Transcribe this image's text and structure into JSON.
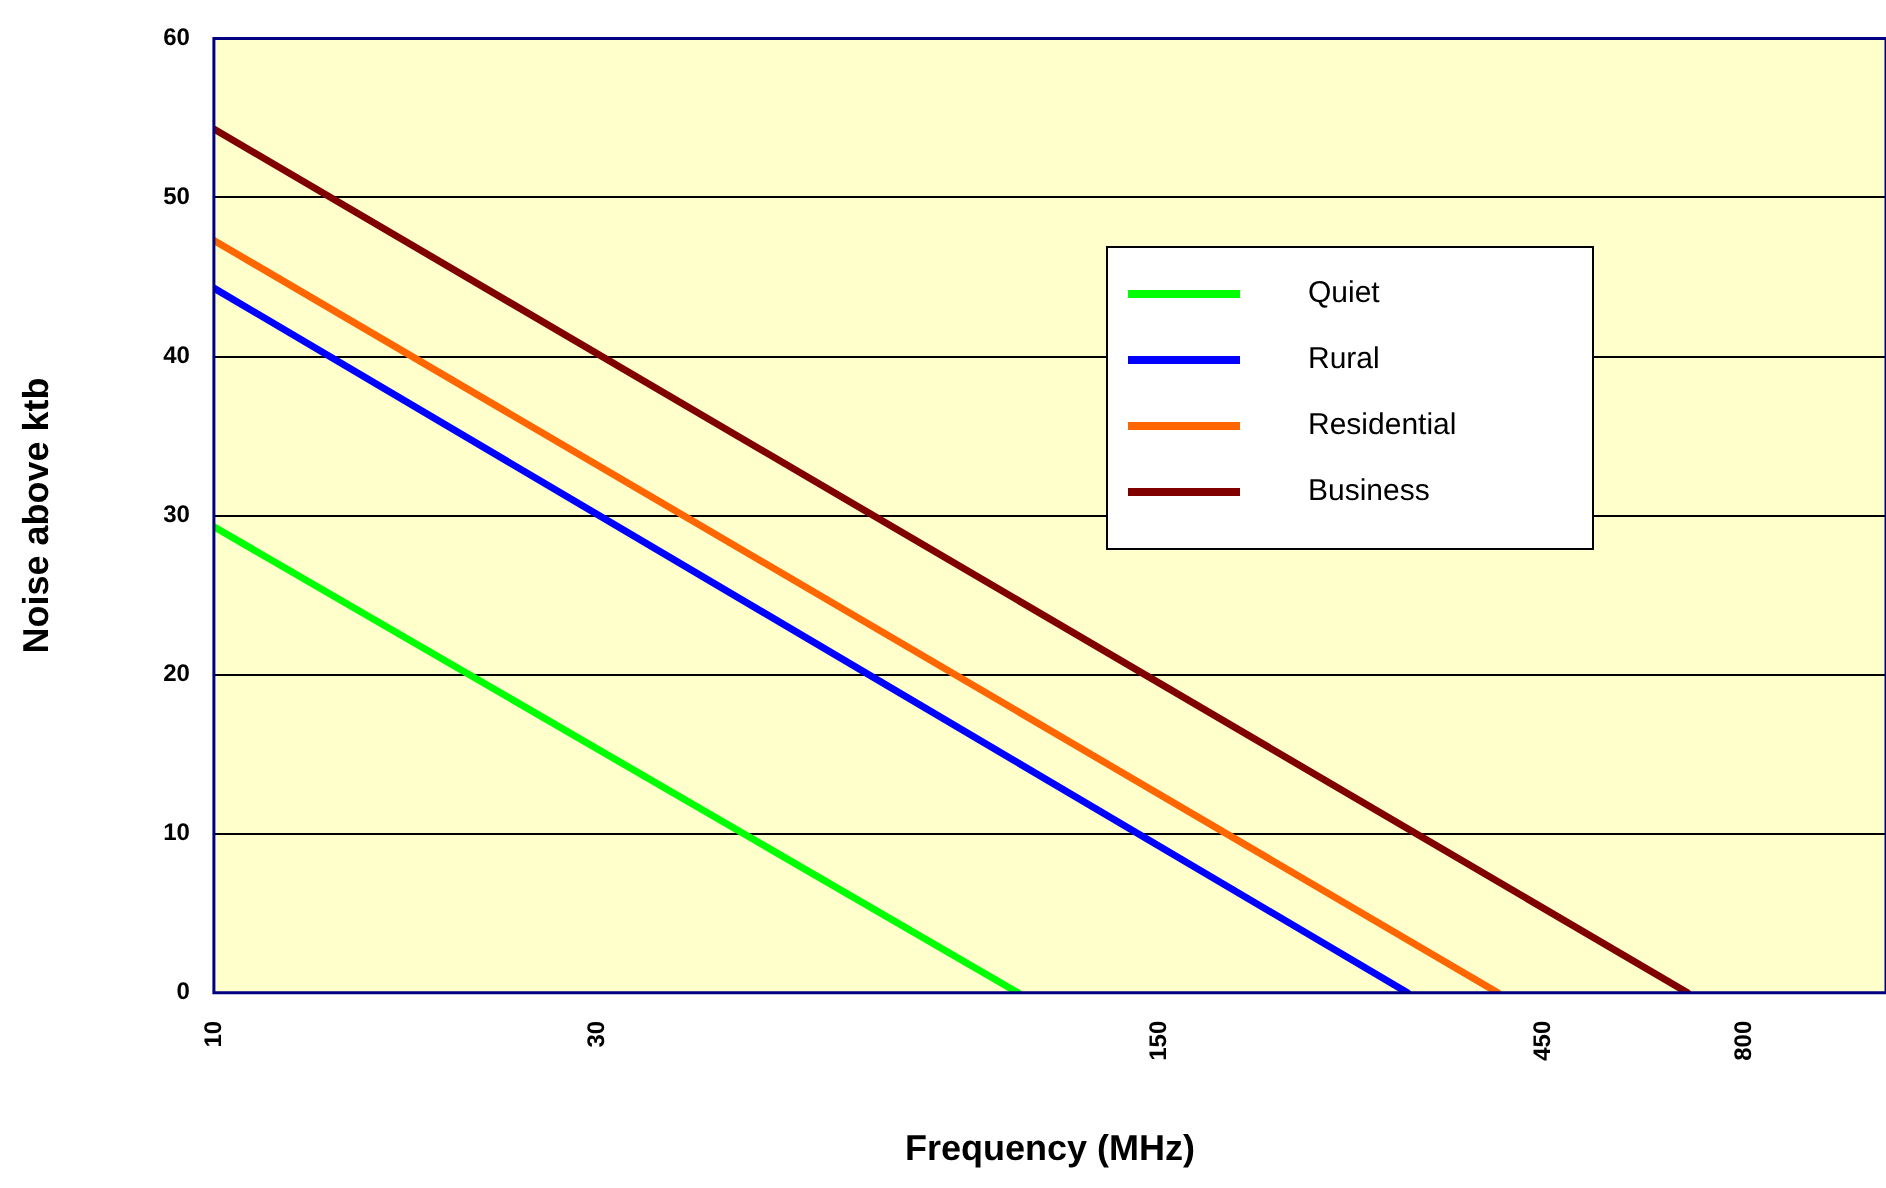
{
  "chart_data": {
    "type": "line",
    "xlabel": "Frequency (MHz)",
    "ylabel": "Noise above ktb",
    "log": "x",
    "xlim": [
      10,
      1200
    ],
    "xticks": [
      10,
      30,
      150,
      450,
      800
    ],
    "ylim": [
      0,
      60
    ],
    "yticks": [
      0,
      10,
      20,
      30,
      40,
      50,
      60
    ],
    "grid": "y",
    "legend": "top right",
    "marker": "none",
    "line_style": "solid",
    "series": [
      {
        "name": "Quiet",
        "color": "#00ff00",
        "x": [
          10,
          100
        ],
        "values": [
          29.3,
          0
        ]
      },
      {
        "name": "Rural",
        "color": "#0000ff",
        "x": [
          10,
          305
        ],
        "values": [
          44.3,
          0
        ]
      },
      {
        "name": "Residential",
        "color": "#ff6600",
        "x": [
          10,
          395
        ],
        "values": [
          47.3,
          0
        ]
      },
      {
        "name": "Business",
        "color": "#800000",
        "x": [
          10,
          680
        ],
        "values": [
          54.3,
          0
        ]
      }
    ]
  }
}
